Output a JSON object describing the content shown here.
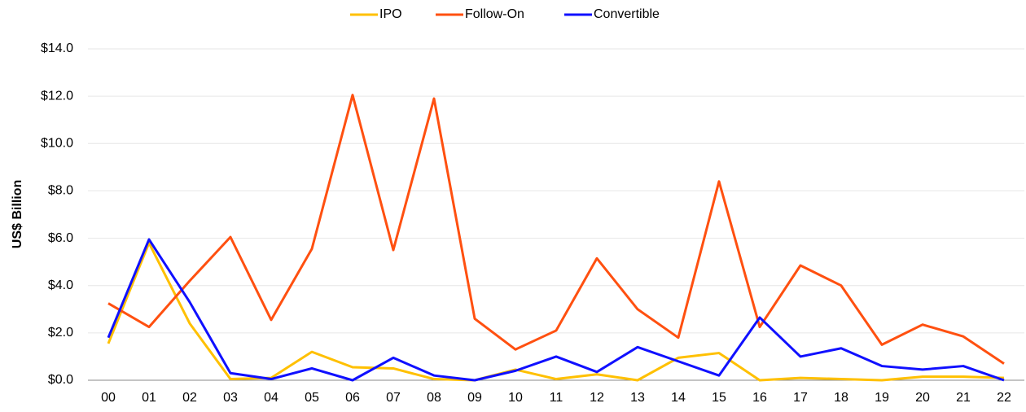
{
  "chart_data": {
    "type": "line",
    "y_label": "US$ Billion",
    "categories": [
      "00",
      "01",
      "02",
      "03",
      "04",
      "05",
      "06",
      "07",
      "08",
      "09",
      "10",
      "11",
      "12",
      "13",
      "14",
      "15",
      "16",
      "17",
      "18",
      "19",
      "20",
      "21",
      "22"
    ],
    "series": [
      {
        "name": "IPO",
        "color": "#ffc000",
        "values": [
          1.55,
          5.8,
          2.4,
          0.05,
          0.1,
          1.2,
          0.55,
          0.5,
          0.05,
          0.0,
          0.45,
          0.05,
          0.25,
          0.0,
          0.95,
          1.15,
          0.0,
          0.1,
          0.05,
          0.0,
          0.15,
          0.15,
          0.1
        ]
      },
      {
        "name": "Follow-On",
        "color": "#ff5010",
        "values": [
          3.25,
          2.25,
          4.2,
          6.05,
          2.55,
          5.55,
          12.05,
          5.5,
          11.9,
          2.6,
          1.3,
          2.1,
          5.15,
          3.0,
          1.8,
          8.4,
          2.25,
          4.85,
          4.0,
          1.5,
          2.35,
          1.85,
          0.7
        ]
      },
      {
        "name": "Convertible",
        "color": "#1010ff",
        "values": [
          1.8,
          5.95,
          3.3,
          0.3,
          0.05,
          0.5,
          0.0,
          0.95,
          0.2,
          0.0,
          0.4,
          1.0,
          0.35,
          1.4,
          0.8,
          0.2,
          2.65,
          1.0,
          1.35,
          0.6,
          0.45,
          0.6,
          0.0
        ]
      }
    ],
    "ylim": [
      0,
      14
    ],
    "yticks": [
      {
        "value": 0,
        "label": "$0.0"
      },
      {
        "value": 2,
        "label": "$2.0"
      },
      {
        "value": 4,
        "label": "$4.0"
      },
      {
        "value": 6,
        "label": "$6.0"
      },
      {
        "value": 8,
        "label": "$8.0"
      },
      {
        "value": 10,
        "label": "$10.0"
      },
      {
        "value": 12,
        "label": "$12.0"
      },
      {
        "value": 14,
        "label": "$14.0"
      }
    ],
    "grid": true,
    "legend": "top"
  }
}
